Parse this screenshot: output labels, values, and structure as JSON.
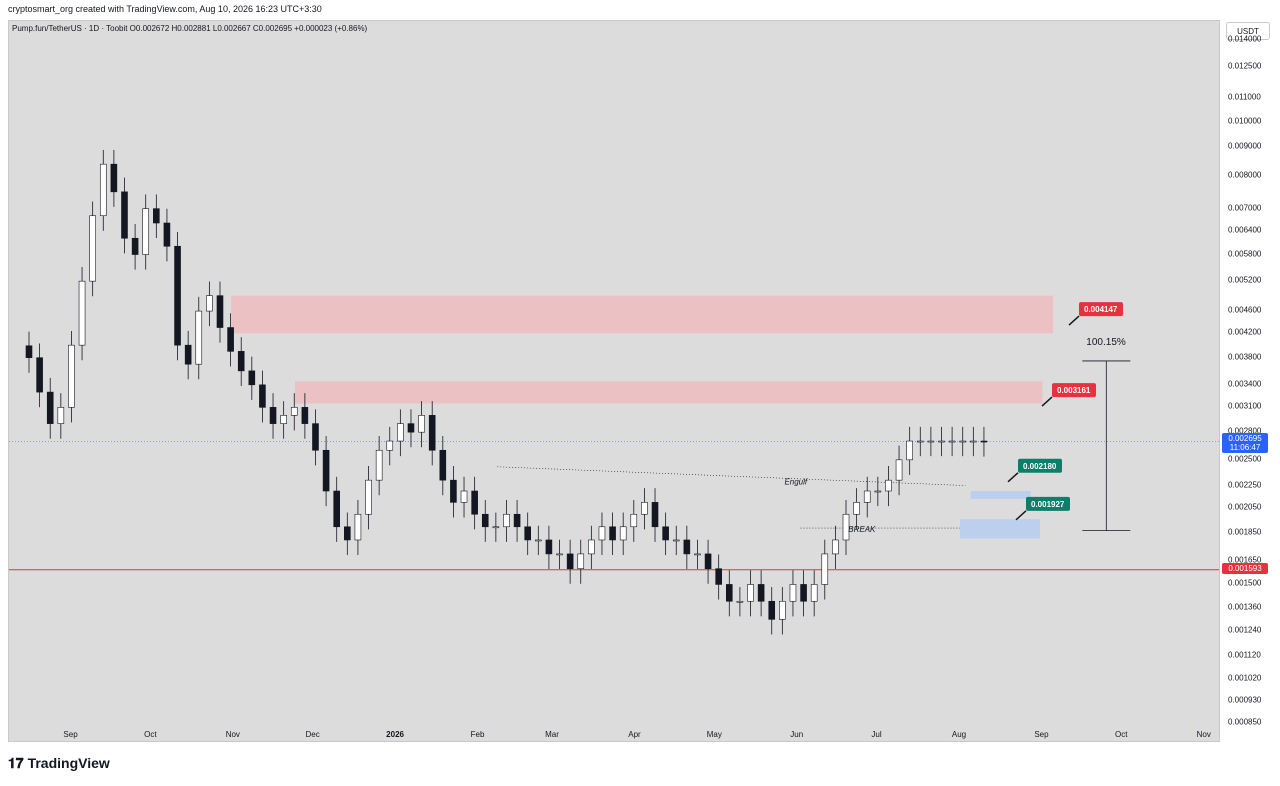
{
  "header": {
    "author_line": "cryptosmart_org created with TradingView.com, Aug 10, 2026 16:23 UTC+3:30",
    "legend": "Pump.fun/TetherUS · 1D · Toobit  O0.002672  H0.002881  L0.002667  C0.002695  +0.000023 (+0.86%)"
  },
  "axis": {
    "unit": "USDT",
    "ticks": [
      "0.014000",
      "0.012500",
      "0.011000",
      "0.010000",
      "0.009000",
      "0.008000",
      "0.007000",
      "0.006400",
      "0.005800",
      "0.005200",
      "0.004600",
      "0.004200",
      "0.003800",
      "0.003400",
      "0.003100",
      "0.002800",
      "0.002500",
      "0.002250",
      "0.002050",
      "0.001850",
      "0.001650",
      "0.001500",
      "0.001360",
      "0.001240",
      "0.001120",
      "0.001020",
      "0.000930",
      "0.000850"
    ],
    "current_price": "0.002695",
    "countdown": "11:06:47",
    "support_price": "0.001593"
  },
  "time_axis": {
    "labels": [
      "Sep",
      "Oct",
      "Nov",
      "Dec",
      "2026",
      "Feb",
      "Mar",
      "Apr",
      "May",
      "Jun",
      "Jul",
      "Aug",
      "Sep",
      "Oct",
      "Nov"
    ]
  },
  "annotations": {
    "target_high": "0.004147",
    "target_low": "0.003161",
    "entry_high": "0.002180",
    "entry_low": "0.001927",
    "percent": "100.15%",
    "engulf": "Engulf",
    "break": "BREAK"
  },
  "colors": {
    "up": "#ffffff",
    "down": "#131722",
    "red_zone": "#f2b8bc",
    "blue_zone": "#bcd0ee",
    "badge_red": "#e5323e",
    "badge_green": "#0e7d6a",
    "price_badge": "#2962ff",
    "support_line": "#e5323e"
  },
  "brand": "TradingView",
  "chart_data": {
    "type": "candlestick",
    "scale": "log",
    "ylim": [
      0.00085,
      0.0145
    ],
    "x": [
      "2025-08-16",
      "2025-08-20",
      "2025-08-24",
      "2025-08-28",
      "2025-09-01",
      "2025-09-05",
      "2025-09-09",
      "2025-09-13",
      "2025-09-17",
      "2025-09-21",
      "2025-09-25",
      "2025-09-29",
      "2025-10-03",
      "2025-10-07",
      "2025-10-11",
      "2025-10-15",
      "2025-10-19",
      "2025-10-23",
      "2025-10-27",
      "2025-10-31",
      "2025-11-04",
      "2025-11-08",
      "2025-11-12",
      "2025-11-16",
      "2025-11-20",
      "2025-11-24",
      "2025-11-28",
      "2025-12-02",
      "2025-12-06",
      "2025-12-10",
      "2025-12-14",
      "2025-12-18",
      "2025-12-22",
      "2025-12-26",
      "2025-12-30",
      "2026-01-03",
      "2026-01-07",
      "2026-01-11",
      "2026-01-15",
      "2026-01-19",
      "2026-01-23",
      "2026-01-27",
      "2026-01-31",
      "2026-02-04",
      "2026-02-08",
      "2026-02-12",
      "2026-02-16",
      "2026-02-20",
      "2026-02-24",
      "2026-02-28",
      "2026-03-04",
      "2026-03-08",
      "2026-03-12",
      "2026-03-16",
      "2026-03-20",
      "2026-03-24",
      "2026-03-28",
      "2026-04-01",
      "2026-04-05",
      "2026-04-09",
      "2026-04-13",
      "2026-04-17",
      "2026-04-21",
      "2026-04-25",
      "2026-04-29",
      "2026-05-03",
      "2026-05-07",
      "2026-05-11",
      "2026-05-15",
      "2026-05-19",
      "2026-05-23",
      "2026-05-27",
      "2026-05-31",
      "2026-06-04",
      "2026-06-08",
      "2026-06-12",
      "2026-06-16",
      "2026-06-20",
      "2026-06-24",
      "2026-06-28",
      "2026-07-02",
      "2026-07-06",
      "2026-07-10",
      "2026-07-14",
      "2026-07-18",
      "2026-07-22",
      "2026-07-26",
      "2026-07-30",
      "2026-08-03",
      "2026-08-07",
      "2026-08-10"
    ],
    "close": [
      0.0038,
      0.0033,
      0.0029,
      0.0031,
      0.004,
      0.0052,
      0.0068,
      0.0084,
      0.0075,
      0.0062,
      0.0058,
      0.007,
      0.0066,
      0.006,
      0.004,
      0.0037,
      0.0046,
      0.0049,
      0.0043,
      0.0039,
      0.0036,
      0.0034,
      0.0031,
      0.0029,
      0.003,
      0.0031,
      0.0029,
      0.0026,
      0.0022,
      0.0019,
      0.0018,
      0.002,
      0.0023,
      0.0026,
      0.0027,
      0.0029,
      0.0028,
      0.003,
      0.0026,
      0.0023,
      0.0021,
      0.0022,
      0.002,
      0.0019,
      0.0019,
      0.002,
      0.0019,
      0.0018,
      0.0018,
      0.0017,
      0.0017,
      0.0016,
      0.0017,
      0.0018,
      0.0019,
      0.0018,
      0.0019,
      0.002,
      0.0021,
      0.0019,
      0.0018,
      0.0018,
      0.0017,
      0.0017,
      0.0016,
      0.0015,
      0.0014,
      0.0014,
      0.0015,
      0.0014,
      0.0013,
      0.0014,
      0.0015,
      0.0014,
      0.0015,
      0.0017,
      0.0018,
      0.002,
      0.0021,
      0.0022,
      0.0022,
      0.0023,
      0.0025,
      0.0027,
      0.0027,
      0.0027,
      0.0027,
      0.0027,
      0.0027,
      0.0027,
      0.002695
    ]
  }
}
